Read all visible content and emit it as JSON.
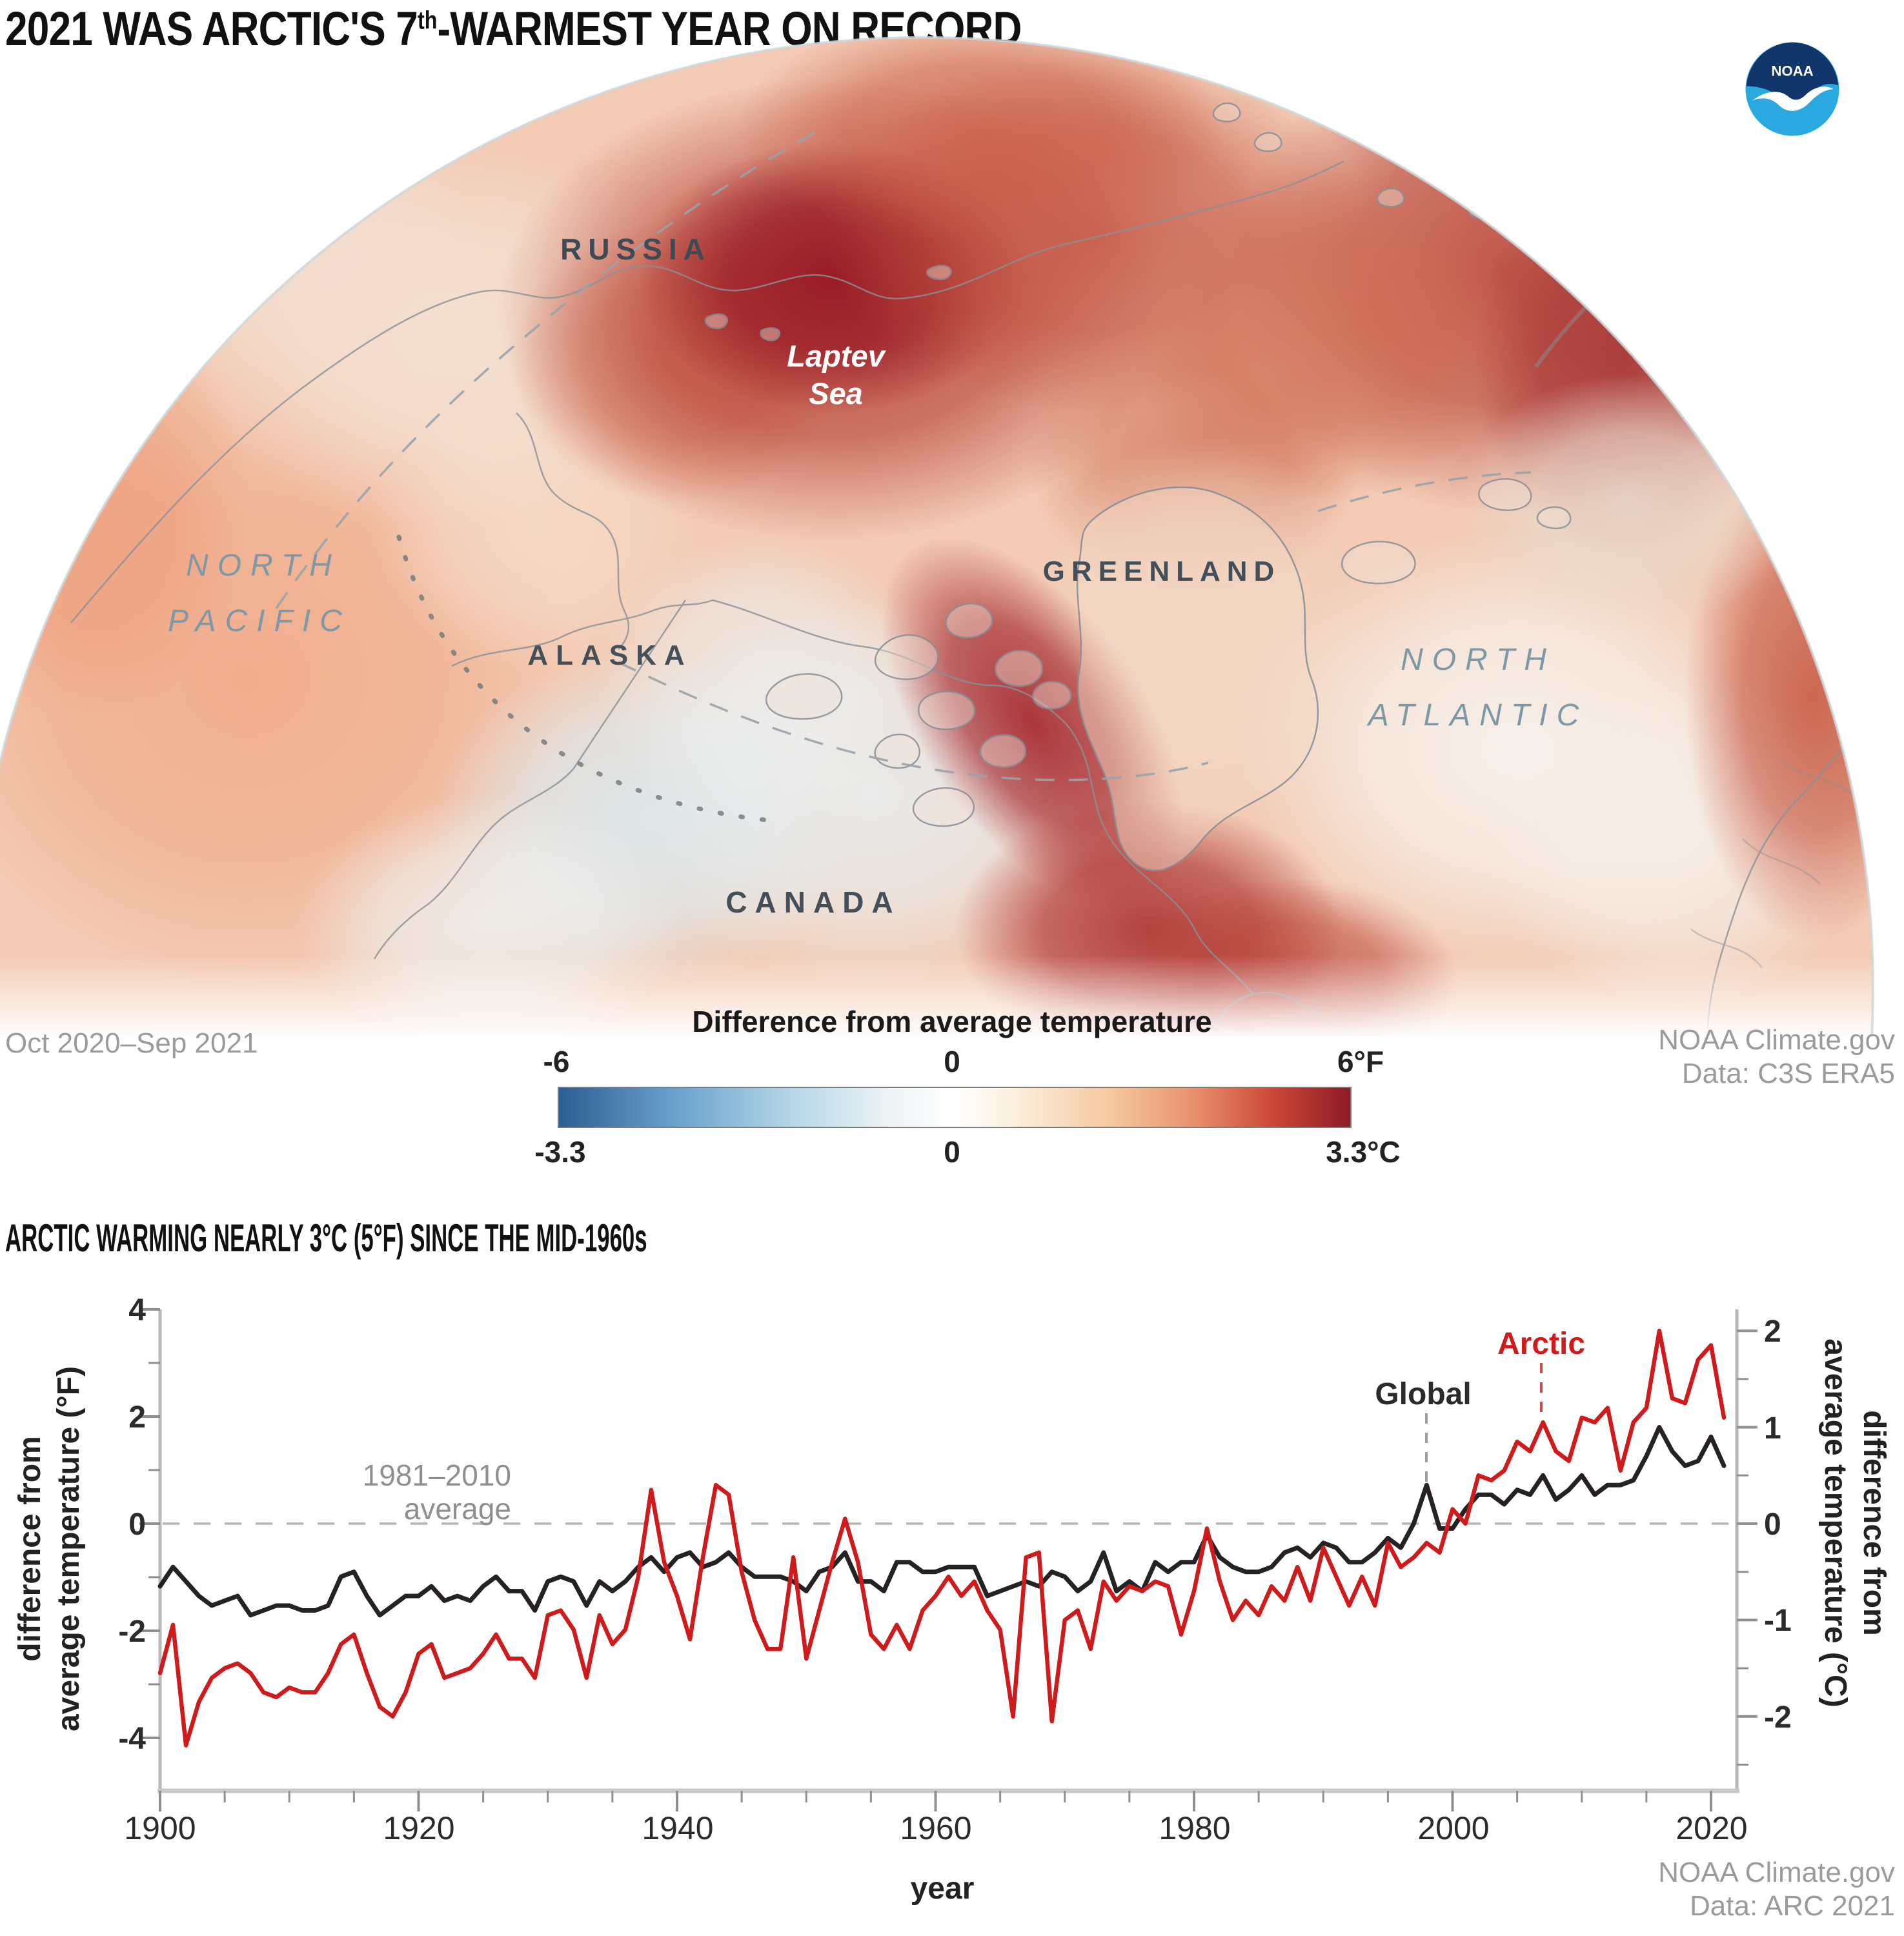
{
  "header": {
    "title_prefix": "2021 WAS ARCTIC'S 7",
    "title_sup": "th",
    "title_suffix": "-WARMEST YEAR ON RECORD",
    "logo_text": "NOAA"
  },
  "map": {
    "labels": {
      "russia": "RUSSIA",
      "laptev_1": "Laptev",
      "laptev_2": "Sea",
      "north_pacific_1": "NORTH",
      "north_pacific_2": "PACIFIC",
      "alaska": "ALASKA",
      "greenland": "GREENLAND",
      "north_atlantic_1": "NORTH",
      "north_atlantic_2": "ATLANTIC",
      "canada": "CANADA"
    },
    "period": "Oct 2020–Sep 2021",
    "credit_1": "NOAA Climate.gov",
    "credit_2": "Data: C3S ERA5",
    "palette": {
      "hot_dark_red": "#991c26",
      "warm_red": "#b33a31",
      "salmon_ocean": "#f0a987",
      "pale_cream": "#f4e2d4",
      "cool_pale_blue": "#dce8ec",
      "near_white": "#f7f2ed",
      "coastline_gray": "#8a9096",
      "ocean_label_blue": "#7e98a6",
      "land_label_gray": "#454f57"
    }
  },
  "legend": {
    "title": "Difference from average temperature",
    "f_ticks": [
      "-6",
      "0",
      "6°F"
    ],
    "c_ticks": [
      "-3.3",
      "0",
      "3.3°C"
    ],
    "gradient": [
      "#2d5e94 0%",
      "#6ba3cd 15%",
      "#b7d8e8 30%",
      "#eef4f5 42%",
      "#ffffff 50%",
      "#fbeedb 58%",
      "#f5c79e 70%",
      "#e8926c 80%",
      "#cc4838 90%",
      "#8e1b26 100%"
    ]
  },
  "chart_data": {
    "type": "line",
    "title": "ARCTIC WARMING NEARLY 3°C (5°F) SINCE THE MID-1960s",
    "xlabel": "year",
    "ylabel_left_1": "difference from",
    "ylabel_left_2": "average temperature (°F)",
    "ylabel_right_1": "difference from",
    "ylabel_right_2": "average temperature (°C)",
    "x_start": 1900,
    "x_end": 2021,
    "x_ticks": [
      1900,
      1920,
      1940,
      1960,
      1980,
      2000,
      2020
    ],
    "x_tick_labels": [
      "1900",
      "1920",
      "1940",
      "1960",
      "1980",
      "2000",
      "2020"
    ],
    "y_left_ticks": [
      4,
      2,
      0,
      -2,
      -4
    ],
    "y_left_minor": [
      3,
      1,
      -1,
      -3
    ],
    "y_left_tick_labels": [
      "4",
      "2",
      "0",
      "-2",
      "-4"
    ],
    "y_left_range_f": [
      -5,
      4
    ],
    "y_right_ticks": [
      2,
      1,
      0,
      -1,
      -2
    ],
    "y_right_minor": [
      1.5,
      0.5,
      -0.5,
      -1.5,
      -2.5
    ],
    "y_right_tick_labels": [
      "2",
      "1",
      "0",
      "-1",
      "-2"
    ],
    "baseline_note_1": "1981–2010",
    "baseline_note_2": "average",
    "grid": "zero-baseline dashed only",
    "legend_position": "inline annotations with dashed pointers",
    "annotations": {
      "arctic": {
        "label": "Arctic",
        "year": 2007,
        "color": "#cf1b1c",
        "pointer_color": "#d2494b"
      },
      "global": {
        "label": "Global",
        "year": 1998,
        "color": "#2b2b2b",
        "pointer_color": "#9d9d9d"
      }
    },
    "units_note": "values in °C vs 1981–2010 average; °F axis = 1.8 × °C",
    "series": [
      {
        "name": "Global",
        "color": "#262223",
        "values_c": [
          -0.65,
          -0.45,
          -0.6,
          -0.75,
          -0.85,
          -0.8,
          -0.75,
          -0.95,
          -0.9,
          -0.85,
          -0.85,
          -0.9,
          -0.9,
          -0.85,
          -0.55,
          -0.5,
          -0.75,
          -0.95,
          -0.85,
          -0.75,
          -0.75,
          -0.65,
          -0.8,
          -0.75,
          -0.8,
          -0.65,
          -0.55,
          -0.7,
          -0.7,
          -0.9,
          -0.6,
          -0.55,
          -0.6,
          -0.85,
          -0.6,
          -0.7,
          -0.6,
          -0.45,
          -0.35,
          -0.5,
          -0.35,
          -0.3,
          -0.45,
          -0.4,
          -0.3,
          -0.45,
          -0.55,
          -0.55,
          -0.55,
          -0.6,
          -0.7,
          -0.5,
          -0.45,
          -0.3,
          -0.6,
          -0.6,
          -0.7,
          -0.4,
          -0.4,
          -0.5,
          -0.5,
          -0.45,
          -0.45,
          -0.45,
          -0.75,
          -0.7,
          -0.65,
          -0.6,
          -0.65,
          -0.5,
          -0.55,
          -0.7,
          -0.6,
          -0.3,
          -0.7,
          -0.6,
          -0.7,
          -0.4,
          -0.5,
          -0.4,
          -0.4,
          -0.12,
          -0.35,
          -0.45,
          -0.5,
          -0.5,
          -0.45,
          -0.3,
          -0.25,
          -0.35,
          -0.2,
          -0.25,
          -0.4,
          -0.4,
          -0.3,
          -0.15,
          -0.25,
          0.0,
          0.4,
          -0.05,
          -0.05,
          0.15,
          0.3,
          0.3,
          0.2,
          0.35,
          0.3,
          0.5,
          0.25,
          0.35,
          0.5,
          0.3,
          0.4,
          0.4,
          0.45,
          0.7,
          1.0,
          0.75,
          0.6,
          0.65,
          0.9,
          0.6
        ]
      },
      {
        "name": "Arctic",
        "color": "#cf1b1c",
        "values_c": [
          -1.55,
          -1.05,
          -2.3,
          -1.85,
          -1.6,
          -1.5,
          -1.45,
          -1.55,
          -1.75,
          -1.8,
          -1.7,
          -1.75,
          -1.75,
          -1.55,
          -1.25,
          -1.15,
          -1.55,
          -1.9,
          -2.0,
          -1.75,
          -1.35,
          -1.25,
          -1.6,
          -1.55,
          -1.5,
          -1.35,
          -1.15,
          -1.4,
          -1.4,
          -1.6,
          -0.95,
          -0.9,
          -1.1,
          -1.6,
          -0.95,
          -1.25,
          -1.1,
          -0.55,
          0.35,
          -0.4,
          -0.75,
          -1.2,
          -0.35,
          0.4,
          0.3,
          -0.5,
          -1.0,
          -1.3,
          -1.3,
          -0.35,
          -1.4,
          -0.9,
          -0.4,
          0.05,
          -0.4,
          -1.15,
          -1.3,
          -1.05,
          -1.3,
          -0.9,
          -0.75,
          -0.55,
          -0.75,
          -0.6,
          -0.9,
          -1.1,
          -2.0,
          -0.35,
          -0.3,
          -2.05,
          -1.0,
          -0.9,
          -1.3,
          -0.6,
          -0.8,
          -0.65,
          -0.7,
          -0.6,
          -0.65,
          -1.15,
          -0.7,
          -0.05,
          -0.6,
          -1.0,
          -0.8,
          -0.95,
          -0.65,
          -0.8,
          -0.45,
          -0.8,
          -0.25,
          -0.55,
          -0.85,
          -0.55,
          -0.85,
          -0.2,
          -0.45,
          -0.35,
          -0.2,
          -0.3,
          0.15,
          0.0,
          0.5,
          0.45,
          0.55,
          0.85,
          0.75,
          1.05,
          0.75,
          0.65,
          1.1,
          1.05,
          1.2,
          0.55,
          1.05,
          1.2,
          2.0,
          1.3,
          1.25,
          1.7,
          1.85,
          1.1
        ]
      }
    ]
  },
  "chart_credits": {
    "credit_1": "NOAA Climate.gov",
    "credit_2": "Data: ARC 2021"
  }
}
